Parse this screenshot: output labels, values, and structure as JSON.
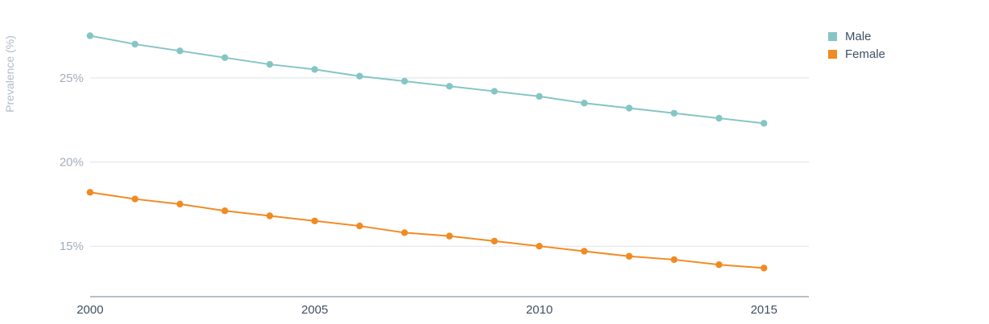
{
  "chart_data": {
    "type": "line",
    "title": "",
    "xlabel": "",
    "ylabel": "Prevalence (%)",
    "x": [
      2000,
      2001,
      2002,
      2003,
      2004,
      2005,
      2006,
      2007,
      2008,
      2009,
      2010,
      2011,
      2012,
      2013,
      2014,
      2015
    ],
    "xticks": [
      "2000",
      "2005",
      "2010",
      "2015"
    ],
    "yticks": [
      "15%",
      "20%",
      "25%"
    ],
    "ylim": [
      12,
      28
    ],
    "xlim": [
      2000,
      2016
    ],
    "grid": true,
    "legend_position": "top-right",
    "series": [
      {
        "name": "Male",
        "color": "#86c5c5",
        "values": [
          27.5,
          27.0,
          26.6,
          26.2,
          25.8,
          25.5,
          25.1,
          24.8,
          24.5,
          24.2,
          23.9,
          23.5,
          23.2,
          22.9,
          22.6,
          22.3
        ]
      },
      {
        "name": "Female",
        "color": "#f28a22",
        "values": [
          18.2,
          17.8,
          17.5,
          17.1,
          16.8,
          16.5,
          16.2,
          15.8,
          15.6,
          15.3,
          15.0,
          14.7,
          14.4,
          14.2,
          13.9,
          13.7
        ]
      }
    ]
  }
}
